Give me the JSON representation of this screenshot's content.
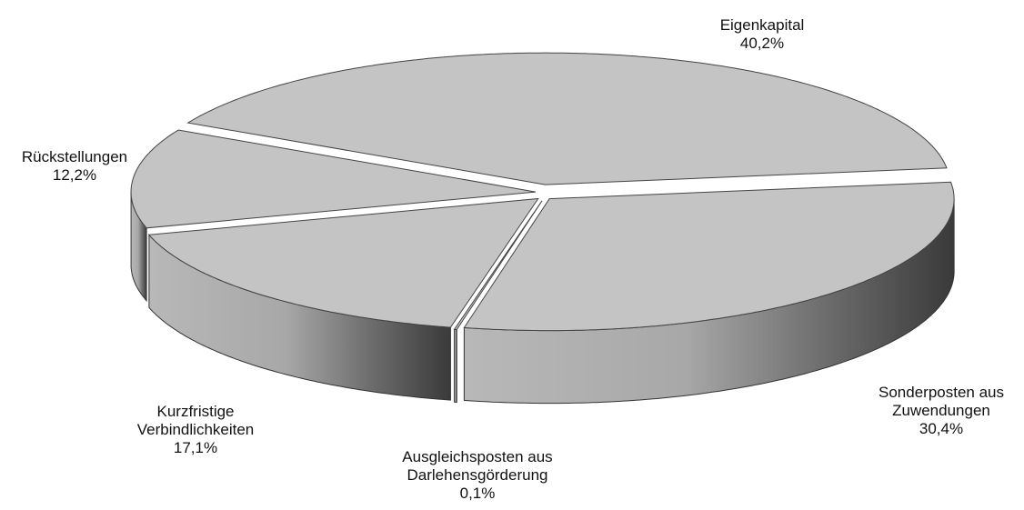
{
  "chart_data": {
    "type": "pie",
    "categories": [
      "Eigenkapital",
      "Sonderposten aus Zuwendungen",
      "Ausgleichsposten aus Darlehensgörderung",
      "Kurzfristige Verbindlichkeiten",
      "Rückstellungen"
    ],
    "values": [
      40.2,
      30.4,
      0.1,
      17.1,
      12.2
    ],
    "value_labels": [
      "40,2%",
      "30,4%",
      "0,1%",
      "17,1%",
      "12,2%"
    ],
    "color": "#c4c4c4"
  }
}
